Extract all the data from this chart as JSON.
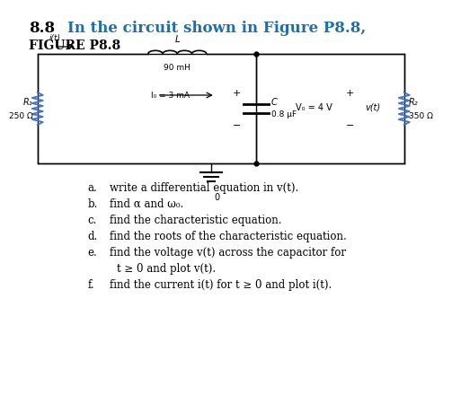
{
  "title_number": "8.8",
  "title_text": "In the circuit shown in Figure P8.8,",
  "figure_label": "FIGURE P8.8",
  "bg_color": "#ffffff",
  "title_color": "#1a6faf",
  "title_fontsize": 12,
  "figure_label_fontsize": 10,
  "circuit": {
    "R1_label": "R₁",
    "R1_value": "250 Ω",
    "R2_label": "R₂",
    "R2_value": "350 Ω",
    "L_label": "L",
    "L_value": "90 mH",
    "C_label": "C",
    "C_value": "0.8 μF",
    "I0_label": "I₀ = 3 mA",
    "V0_label": "V₀ = 4 V",
    "vt_label": "v(t)",
    "ground_label": "0",
    "it_label": "i(t)"
  },
  "q_indent_letter": 0.62,
  "q_indent_text": 0.82,
  "questions": [
    [
      "a.",
      "write a differential equation in v(t)."
    ],
    [
      "b.",
      "find α and ω₀."
    ],
    [
      "c.",
      "find the characteristic equation."
    ],
    [
      "d.",
      "find the roots of the characteristic equation."
    ],
    [
      "e.",
      "find the voltage v(t) across the capacitor for\n        t ≥ 0 and plot v(t)."
    ],
    [
      "f.",
      "find the current i(t) for t ≥ 0 and plot i(t)."
    ]
  ]
}
